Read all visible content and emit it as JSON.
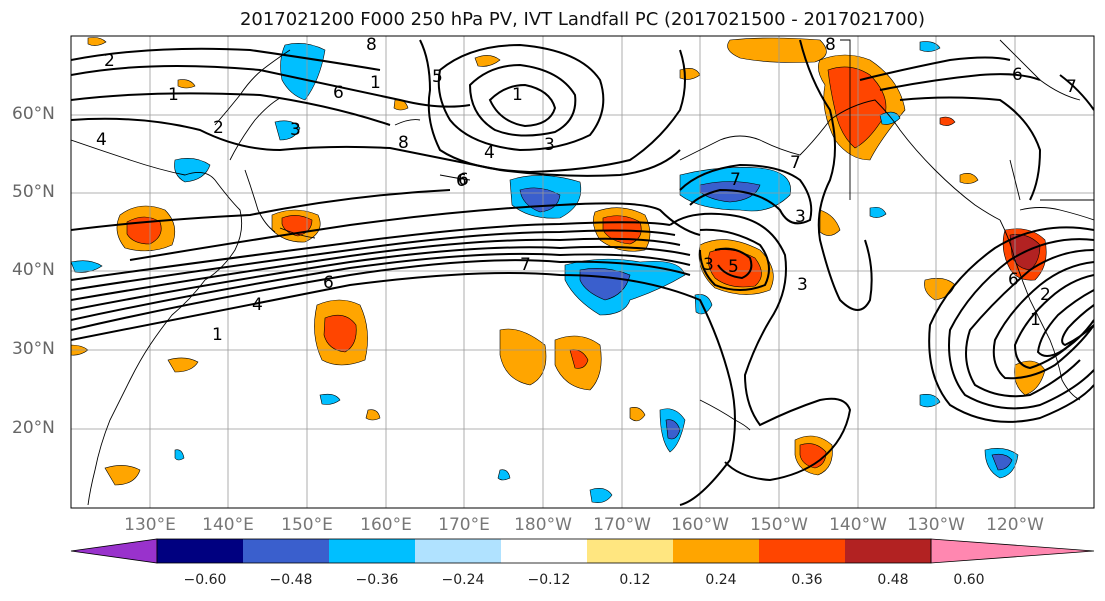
{
  "title": "2017021200 F000 250 hPa PV, IVT Landfall PC (2017021500 - 2017021700)",
  "lat_labels": [
    "60°N",
    "50°N",
    "40°N",
    "30°N",
    "20°N"
  ],
  "lon_labels": [
    "130°E",
    "140°E",
    "150°E",
    "160°E",
    "170°E",
    "180°W",
    "170°W",
    "160°W",
    "150°W",
    "140°W",
    "130°W",
    "120°W"
  ],
  "contour_labels": [
    "2",
    "1",
    "8",
    "6",
    "1",
    "5",
    "1",
    "3",
    "4",
    "3",
    "6",
    "8",
    "6",
    "7",
    "3",
    "7",
    "6",
    "4",
    "1",
    "2",
    "7",
    "5",
    "3",
    "6",
    "1",
    "2",
    "4",
    "8",
    "7",
    "6",
    "3"
  ],
  "colorbar": {
    "ticks": [
      "−0.60",
      "−0.48",
      "−0.36",
      "−0.24",
      "−0.12",
      "0.12",
      "0.24",
      "0.36",
      "0.48",
      "0.60"
    ],
    "colors": [
      "#9932cc",
      "#000080",
      "#3a5fcd",
      "#00bfff",
      "#b0e2ff",
      "#ffffff",
      "#ffe680",
      "#ffa500",
      "#ff4500",
      "#b22222",
      "#ff87b0"
    ]
  }
}
